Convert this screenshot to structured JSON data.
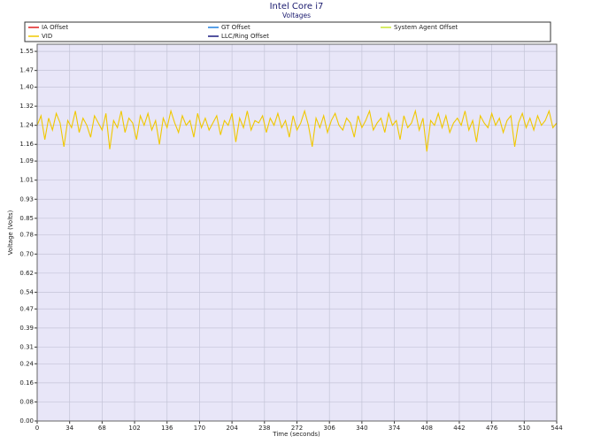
{
  "chart_data": {
    "type": "line",
    "title": "Intel Core i7",
    "subtitle": "Voltages",
    "x_label": "Time (seconds)",
    "y_label": "Voltage (Volts)",
    "xlim": [
      0,
      544
    ],
    "xticks": [
      0,
      34,
      68,
      102,
      136,
      170,
      204,
      238,
      272,
      306,
      340,
      374,
      408,
      442,
      476,
      510,
      544
    ],
    "ylim": [
      0,
      1.58
    ],
    "yticks": [
      {
        "value": 0,
        "label": "0.00"
      },
      0.08,
      0.16,
      0.24,
      0.31,
      0.39,
      0.47,
      0.54,
      0.62,
      {
        "value": 0.7,
        "label": "0.70"
      },
      0.78,
      0.85,
      0.93,
      1.01,
      1.09,
      1.16,
      1.24,
      1.32,
      {
        "value": 1.4,
        "label": "1.40"
      },
      1.47,
      1.55
    ],
    "grid": true,
    "background": "#e8e6f8",
    "x": [
      0,
      4,
      8,
      12,
      16,
      20,
      24,
      28,
      32,
      36,
      40,
      44,
      48,
      52,
      56,
      60,
      64,
      68,
      72,
      76,
      80,
      84,
      88,
      92,
      96,
      100,
      104,
      108,
      112,
      116,
      120,
      124,
      128,
      132,
      136,
      140,
      144,
      148,
      152,
      156,
      160,
      164,
      168,
      172,
      176,
      180,
      184,
      188,
      192,
      196,
      200,
      204,
      208,
      212,
      216,
      220,
      224,
      228,
      232,
      236,
      240,
      244,
      248,
      252,
      256,
      260,
      264,
      268,
      272,
      276,
      280,
      284,
      288,
      292,
      296,
      300,
      304,
      308,
      312,
      316,
      320,
      324,
      328,
      332,
      336,
      340,
      344,
      348,
      352,
      356,
      360,
      364,
      368,
      372,
      376,
      380,
      384,
      388,
      392,
      396,
      400,
      404,
      408,
      412,
      416,
      420,
      424,
      428,
      432,
      436,
      440,
      444,
      448,
      452,
      456,
      460,
      464,
      468,
      472,
      476,
      480,
      484,
      488,
      492,
      496,
      500,
      504,
      508,
      512,
      516,
      520,
      524,
      528,
      532,
      536,
      540,
      544
    ],
    "series": [
      {
        "name": "IA Offset",
        "color": "#e02020",
        "values": [
          0,
          0,
          0,
          0,
          0,
          0,
          0,
          0,
          0,
          0,
          0,
          0,
          0,
          0,
          0,
          0,
          0,
          0,
          0,
          0,
          0,
          0,
          0,
          0,
          0,
          0,
          0,
          0,
          0,
          0,
          0,
          0,
          0,
          0,
          0,
          0,
          0,
          0,
          0,
          0,
          0,
          0,
          0,
          0,
          0,
          0,
          0,
          0,
          0,
          0,
          0,
          0,
          0,
          0,
          0,
          0,
          0,
          0,
          0,
          0,
          0,
          0,
          0,
          0,
          0,
          0,
          0,
          0,
          0,
          0,
          0,
          0,
          0,
          0,
          0,
          0,
          0,
          0,
          0,
          0,
          0,
          0,
          0,
          0,
          0,
          0,
          0,
          0,
          0,
          0,
          0,
          0,
          0,
          0,
          0,
          0,
          0,
          0,
          0,
          0,
          0,
          0,
          0,
          0,
          0,
          0,
          0,
          0,
          0,
          0,
          0,
          0,
          0,
          0,
          0,
          0,
          0,
          0,
          0,
          0,
          0,
          0,
          0,
          0,
          0,
          0,
          0,
          0,
          0,
          0,
          0,
          0,
          0,
          0,
          0,
          0,
          0
        ]
      },
      {
        "name": "GT Offset",
        "color": "#2080e0",
        "values": [
          0,
          0,
          0,
          0,
          0,
          0,
          0,
          0,
          0,
          0,
          0,
          0,
          0,
          0,
          0,
          0,
          0,
          0,
          0,
          0,
          0,
          0,
          0,
          0,
          0,
          0,
          0,
          0,
          0,
          0,
          0,
          0,
          0,
          0,
          0,
          0,
          0,
          0,
          0,
          0,
          0,
          0,
          0,
          0,
          0,
          0,
          0,
          0,
          0,
          0,
          0,
          0,
          0,
          0,
          0,
          0,
          0,
          0,
          0,
          0,
          0,
          0,
          0,
          0,
          0,
          0,
          0,
          0,
          0,
          0,
          0,
          0,
          0,
          0,
          0,
          0,
          0,
          0,
          0,
          0,
          0,
          0,
          0,
          0,
          0,
          0,
          0,
          0,
          0,
          0,
          0,
          0,
          0,
          0,
          0,
          0,
          0,
          0,
          0,
          0,
          0,
          0,
          0,
          0,
          0,
          0,
          0,
          0,
          0,
          0,
          0,
          0,
          0,
          0,
          0,
          0,
          0,
          0,
          0,
          0,
          0,
          0,
          0,
          0,
          0,
          0,
          0,
          0,
          0,
          0,
          0,
          0,
          0,
          0,
          0,
          0,
          0
        ]
      },
      {
        "name": "System Agent Offset",
        "color": "#c8e632",
        "values": [
          0,
          0,
          0,
          0,
          0,
          0,
          0,
          0,
          0,
          0,
          0,
          0,
          0,
          0,
          0,
          0,
          0,
          0,
          0,
          0,
          0,
          0,
          0,
          0,
          0,
          0,
          0,
          0,
          0,
          0,
          0,
          0,
          0,
          0,
          0,
          0,
          0,
          0,
          0,
          0,
          0,
          0,
          0,
          0,
          0,
          0,
          0,
          0,
          0,
          0,
          0,
          0,
          0,
          0,
          0,
          0,
          0,
          0,
          0,
          0,
          0,
          0,
          0,
          0,
          0,
          0,
          0,
          0,
          0,
          0,
          0,
          0,
          0,
          0,
          0,
          0,
          0,
          0,
          0,
          0,
          0,
          0,
          0,
          0,
          0,
          0,
          0,
          0,
          0,
          0,
          0,
          0,
          0,
          0,
          0,
          0,
          0,
          0,
          0,
          0,
          0,
          0,
          0,
          0,
          0,
          0,
          0,
          0,
          0,
          0,
          0,
          0,
          0,
          0,
          0,
          0,
          0,
          0,
          0,
          0,
          0,
          0,
          0,
          0,
          0,
          0,
          0,
          0,
          0,
          0,
          0,
          0,
          0,
          0,
          0,
          0,
          0
        ]
      },
      {
        "name": "VID",
        "color": "#f0c800",
        "values": [
          1.24,
          1.28,
          1.18,
          1.27,
          1.22,
          1.29,
          1.25,
          1.15,
          1.26,
          1.23,
          1.3,
          1.21,
          1.27,
          1.24,
          1.19,
          1.28,
          1.25,
          1.22,
          1.29,
          1.14,
          1.26,
          1.23,
          1.3,
          1.21,
          1.27,
          1.25,
          1.18,
          1.28,
          1.24,
          1.29,
          1.22,
          1.26,
          1.16,
          1.27,
          1.23,
          1.3,
          1.25,
          1.21,
          1.28,
          1.24,
          1.26,
          1.19,
          1.29,
          1.23,
          1.27,
          1.22,
          1.25,
          1.28,
          1.2,
          1.26,
          1.24,
          1.29,
          1.17,
          1.27,
          1.23,
          1.3,
          1.22,
          1.26,
          1.25,
          1.28,
          1.21,
          1.27,
          1.24,
          1.29,
          1.23,
          1.26,
          1.19,
          1.28,
          1.22,
          1.25,
          1.3,
          1.24,
          1.15,
          1.27,
          1.23,
          1.28,
          1.21,
          1.26,
          1.29,
          1.24,
          1.22,
          1.27,
          1.25,
          1.19,
          1.28,
          1.23,
          1.26,
          1.3,
          1.22,
          1.25,
          1.27,
          1.21,
          1.29,
          1.24,
          1.26,
          1.18,
          1.28,
          1.23,
          1.25,
          1.3,
          1.22,
          1.27,
          1.13,
          1.26,
          1.24,
          1.29,
          1.23,
          1.28,
          1.21,
          1.25,
          1.27,
          1.24,
          1.3,
          1.22,
          1.26,
          1.17,
          1.28,
          1.25,
          1.23,
          1.29,
          1.24,
          1.27,
          1.21,
          1.26,
          1.28,
          1.15,
          1.25,
          1.29,
          1.23,
          1.27,
          1.22,
          1.28,
          1.24,
          1.26,
          1.3,
          1.23,
          1.25
        ]
      },
      {
        "name": "LLC/Ring Offset",
        "color": "#1a1a80",
        "values": [
          0,
          0,
          0,
          0,
          0,
          0,
          0,
          0,
          0,
          0,
          0,
          0,
          0,
          0,
          0,
          0,
          0,
          0,
          0,
          0,
          0,
          0,
          0,
          0,
          0,
          0,
          0,
          0,
          0,
          0,
          0,
          0,
          0,
          0,
          0,
          0,
          0,
          0,
          0,
          0,
          0,
          0,
          0,
          0,
          0,
          0,
          0,
          0,
          0,
          0,
          0,
          0,
          0,
          0,
          0,
          0,
          0,
          0,
          0,
          0,
          0,
          0,
          0,
          0,
          0,
          0,
          0,
          0,
          0,
          0,
          0,
          0,
          0,
          0,
          0,
          0,
          0,
          0,
          0,
          0,
          0,
          0,
          0,
          0,
          0,
          0,
          0,
          0,
          0,
          0,
          0,
          0,
          0,
          0,
          0,
          0,
          0,
          0,
          0,
          0,
          0,
          0,
          0,
          0,
          0,
          0,
          0,
          0,
          0,
          0,
          0,
          0,
          0,
          0,
          0,
          0,
          0,
          0,
          0,
          0,
          0,
          0,
          0,
          0,
          0,
          0,
          0,
          0,
          0,
          0,
          0,
          0,
          0,
          0,
          0,
          0,
          0
        ]
      }
    ]
  }
}
